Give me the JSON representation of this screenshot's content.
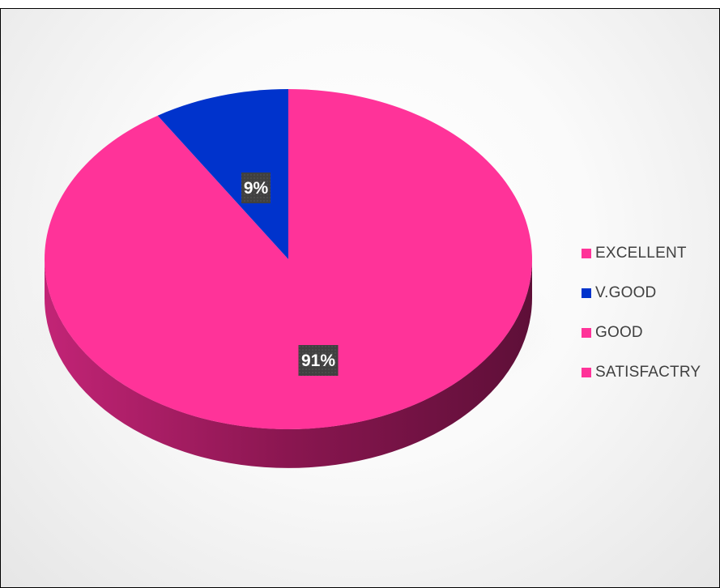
{
  "chart_data": {
    "type": "pie",
    "style": "3d",
    "title": "",
    "slices": [
      {
        "name": "EXCELLENT",
        "value": 91,
        "label": "91%",
        "color": "#FF3399"
      },
      {
        "name": "V.GOOD",
        "value": 9,
        "label": "9%",
        "color": "#0033CC"
      },
      {
        "name": "GOOD",
        "value": 0,
        "label": "",
        "color": "#FF3399"
      },
      {
        "name": "SATISFACTRY",
        "value": 0,
        "label": "",
        "color": "#FF3399"
      }
    ],
    "legend_position": "right",
    "label_box_color": "#404040"
  }
}
